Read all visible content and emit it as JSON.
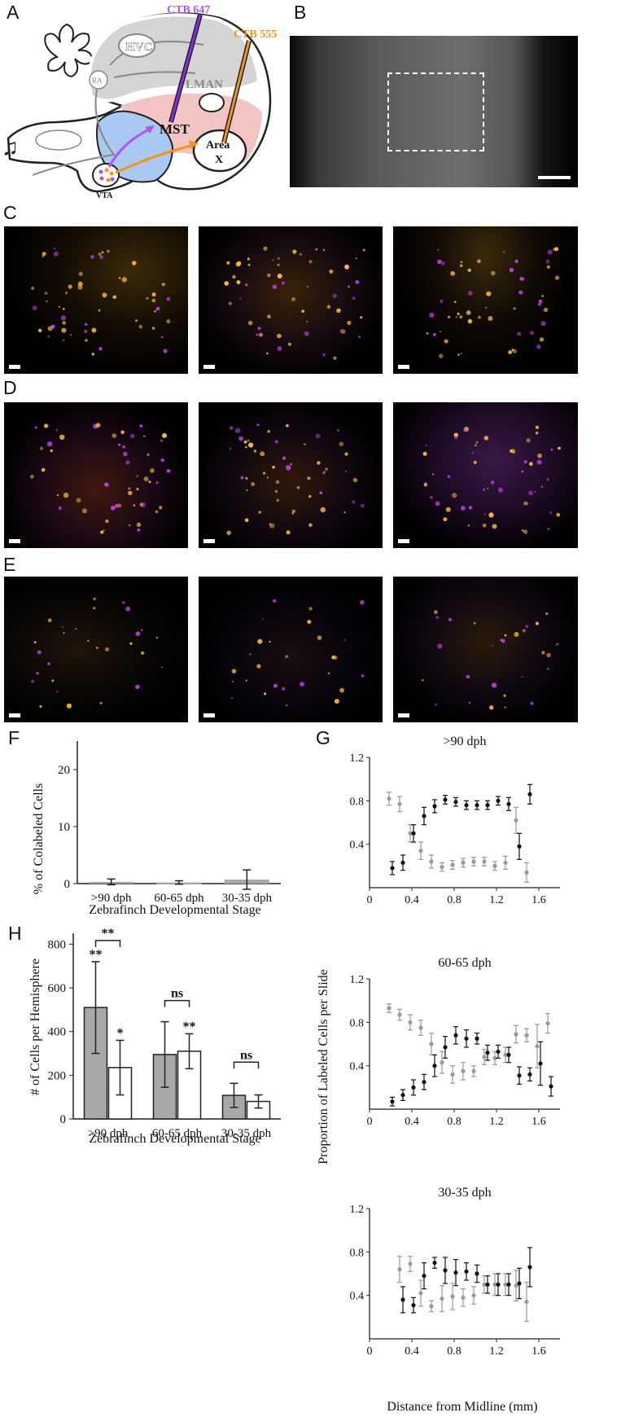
{
  "panels": {
    "A": "A",
    "B": "B",
    "C": "C",
    "D": "D",
    "E": "E",
    "F": "F",
    "G": "G",
    "H": "H"
  },
  "panelA": {
    "tracer_1": "CTB 647",
    "tracer_2": "CTB 555",
    "regions": [
      "HVC",
      "RA",
      "LMAN",
      "MST",
      "Area",
      "X",
      "VTA"
    ],
    "colors": {
      "ctb647": "#b154f0",
      "ctb555": "#f0961e",
      "pink": "#f2c4c4",
      "blue": "#a9c8f2",
      "gray": "#d4d4d4"
    }
  },
  "chartF": {
    "type": "bar",
    "ylabel": "% of Colabeled Cells",
    "xlabel": "Zebrafinch Developmental Stage",
    "categories": [
      ">90 dph",
      "60-65 dph",
      "30-35 dph"
    ],
    "values": [
      0.3,
      0.2,
      0.7
    ],
    "err": [
      0.5,
      0.3,
      1.7
    ],
    "yticks": [
      "0",
      "10",
      "20"
    ],
    "ylim": [
      0,
      25
    ]
  },
  "chartH": {
    "type": "bar",
    "ylabel": "# of Cells per Hemisphere",
    "xlabel": "Zebrafinch Developmental Stage",
    "categories": [
      ">90 dph",
      "60-65 dph",
      "30-35 dph"
    ],
    "series": [
      {
        "values": [
          510,
          295,
          108
        ],
        "err": [
          210,
          150,
          55
        ],
        "color": "#a8a8a8"
      },
      {
        "values": [
          235,
          310,
          80
        ],
        "err": [
          125,
          80,
          30
        ],
        "color": "#ffffff"
      }
    ],
    "bar_sig": [
      "**",
      "*",
      "",
      "**",
      "",
      ""
    ],
    "pair_sig": [
      "**",
      "ns",
      "ns"
    ],
    "yticks": [
      "0",
      "200",
      "400",
      "600",
      "800"
    ],
    "ylim": [
      0,
      850
    ]
  },
  "chartG": {
    "type": "scatter",
    "ylabel": "Proportion of Labeled Cells per Slide",
    "xlabel": "Distance from Midline (mm)",
    "xticks": [
      "0",
      "0.4",
      "0.8",
      "1.2",
      "1.6"
    ],
    "yticks": [
      "0.4",
      "0.8",
      "1.2"
    ],
    "xlim": [
      0,
      1.8
    ],
    "ylim": [
      0,
      1.2
    ],
    "subplots": [
      {
        "title": ">90 dph",
        "x": [
          0.2,
          0.3,
          0.4,
          0.5,
          0.6,
          0.7,
          0.8,
          0.9,
          1.0,
          1.1,
          1.2,
          1.3,
          1.4,
          1.5
        ],
        "black": [
          0.18,
          0.23,
          0.5,
          0.66,
          0.75,
          0.81,
          0.79,
          0.76,
          0.76,
          0.76,
          0.8,
          0.77,
          0.38,
          0.86
        ],
        "black_err": [
          0.06,
          0.07,
          0.08,
          0.08,
          0.06,
          0.04,
          0.04,
          0.04,
          0.04,
          0.04,
          0.04,
          0.06,
          0.12,
          0.09
        ],
        "gray": [
          0.82,
          0.77,
          0.5,
          0.34,
          0.24,
          0.19,
          0.21,
          0.23,
          0.24,
          0.24,
          0.2,
          0.23,
          0.62,
          0.14
        ],
        "gray_err": [
          0.06,
          0.07,
          0.08,
          0.08,
          0.06,
          0.04,
          0.04,
          0.04,
          0.04,
          0.04,
          0.04,
          0.06,
          0.12,
          0.09
        ]
      },
      {
        "title": "60-65 dph",
        "x": [
          0.2,
          0.3,
          0.4,
          0.5,
          0.6,
          0.7,
          0.8,
          0.9,
          1.0,
          1.1,
          1.2,
          1.3,
          1.4,
          1.5,
          1.6,
          1.7
        ],
        "black": [
          0.07,
          0.13,
          0.2,
          0.25,
          0.4,
          0.57,
          0.68,
          0.65,
          0.65,
          0.52,
          0.53,
          0.5,
          0.31,
          0.32,
          0.42,
          0.21
        ],
        "black_err": [
          0.04,
          0.05,
          0.07,
          0.07,
          0.1,
          0.1,
          0.08,
          0.08,
          0.05,
          0.07,
          0.06,
          0.07,
          0.08,
          0.06,
          0.2,
          0.09
        ],
        "gray": [
          0.93,
          0.87,
          0.8,
          0.75,
          0.6,
          0.43,
          0.32,
          0.35,
          0.35,
          0.48,
          0.47,
          0.5,
          0.69,
          0.68,
          0.58,
          0.79
        ],
        "gray_err": [
          0.04,
          0.05,
          0.07,
          0.07,
          0.1,
          0.1,
          0.08,
          0.08,
          0.05,
          0.07,
          0.06,
          0.07,
          0.08,
          0.06,
          0.2,
          0.09
        ]
      },
      {
        "title": "30-35 dph",
        "x": [
          0.3,
          0.4,
          0.5,
          0.6,
          0.7,
          0.8,
          0.9,
          1.0,
          1.1,
          1.2,
          1.3,
          1.4,
          1.5
        ],
        "black": [
          0.36,
          0.31,
          0.58,
          0.7,
          0.63,
          0.61,
          0.62,
          0.6,
          0.5,
          0.5,
          0.5,
          0.51,
          0.66
        ],
        "black_err": [
          0.12,
          0.07,
          0.12,
          0.05,
          0.12,
          0.12,
          0.08,
          0.08,
          0.08,
          0.1,
          0.1,
          0.14,
          0.18
        ],
        "gray": [
          0.64,
          0.69,
          0.42,
          0.3,
          0.37,
          0.39,
          0.38,
          0.4,
          0.5,
          0.5,
          0.5,
          0.49,
          0.34
        ],
        "gray_err": [
          0.12,
          0.07,
          0.12,
          0.05,
          0.12,
          0.12,
          0.08,
          0.08,
          0.08,
          0.1,
          0.1,
          0.14,
          0.18
        ]
      }
    ]
  }
}
